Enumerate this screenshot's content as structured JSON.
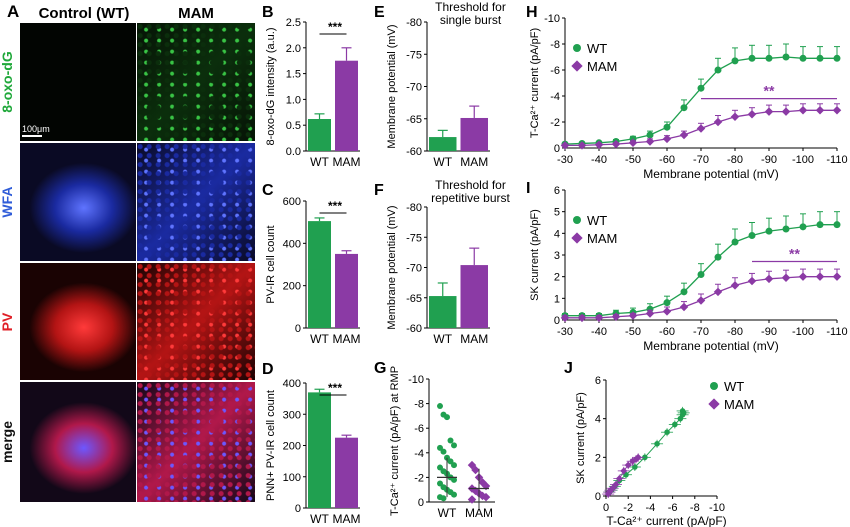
{
  "panel_A": {
    "letter": "A",
    "col_headers": [
      "Control (WT)",
      "MAM"
    ],
    "row_labels": [
      "8-oxo-dG",
      "WFA",
      "PV",
      "merge"
    ],
    "row_label_colors": [
      "#1fa83a",
      "#2f5cd8",
      "#e01f26",
      "#111111"
    ],
    "scale_bar": "100μm"
  },
  "colors": {
    "wt": "#20a050",
    "mam": "#8b3aa5"
  },
  "chart_data": [
    {
      "id": "B",
      "type": "bar",
      "categories": [
        "WT",
        "MAM"
      ],
      "values": [
        0.62,
        1.75
      ],
      "errors": [
        0.1,
        0.25
      ],
      "ylabel": "8-oxo-dG intensity (a.u.)",
      "ylim": [
        0,
        2.5
      ],
      "yticks": [
        "0.0",
        "0.5",
        "1.0",
        "1.5",
        "2.0",
        "2.5"
      ],
      "significance": "***"
    },
    {
      "id": "C",
      "type": "bar",
      "categories": [
        "WT",
        "MAM"
      ],
      "values": [
        505,
        350
      ],
      "errors": [
        15,
        15
      ],
      "ylabel": "PV-IR cell count",
      "ylim": [
        0,
        600
      ],
      "yticks": [
        "0",
        "200",
        "400",
        "600"
      ],
      "significance": "***"
    },
    {
      "id": "D",
      "type": "bar",
      "categories": [
        "WT",
        "MAM"
      ],
      "values": [
        370,
        225
      ],
      "errors": [
        10,
        8
      ],
      "ylabel": "PNN+ PV-IR cell count",
      "ylim": [
        0,
        400
      ],
      "yticks": [
        "0",
        "100",
        "200",
        "300",
        "400"
      ],
      "significance": "***"
    },
    {
      "id": "E",
      "type": "bar",
      "categories": [
        "WT",
        "MAM"
      ],
      "values": [
        -62.7,
        -66.4
      ],
      "errors": [
        1.3,
        2.3
      ],
      "title": "Threshold for\nsingle burst",
      "ylabel": "Membrane potential (mV)",
      "ylim": [
        -60,
        -85
      ],
      "yticks": [
        "-60",
        "-65",
        "-70",
        "-75",
        "-80"
      ]
    },
    {
      "id": "F",
      "type": "bar",
      "categories": [
        "WT",
        "MAM"
      ],
      "values": [
        -66.6,
        -73.0
      ],
      "errors": [
        2.7,
        3.5
      ],
      "title": "Threshold for\nrepetitive burst",
      "ylabel": "Membrane potential (mV)",
      "ylim": [
        -60,
        -85
      ],
      "yticks": [
        "-60",
        "-65",
        "-70",
        "-75",
        "-80"
      ]
    },
    {
      "id": "G",
      "type": "scatter",
      "categories": [
        "WT",
        "MAM"
      ],
      "ylabel": "T-Ca²⁺ current (pA/pF) at RMP",
      "ylim": [
        0,
        -10
      ],
      "yticks": [
        "0",
        "-2",
        "-4",
        "-6",
        "-8",
        "-10"
      ],
      "series": [
        {
          "name": "WT",
          "values": [
            -7.8,
            -7.1,
            -6.9,
            -5.0,
            -4.6,
            -4.4,
            -4.1,
            -3.6,
            -3.3,
            -3.0,
            -2.8,
            -2.5,
            -2.3,
            -2.0,
            -1.8,
            -1.5,
            -1.2,
            -1.0,
            -0.8,
            -0.6,
            -0.4,
            -0.3
          ],
          "mean": -2.0,
          "sd": 1.6
        },
        {
          "name": "MAM",
          "values": [
            -3.0,
            -2.6,
            -2.0,
            -1.6,
            -1.3,
            -1.1,
            -0.9,
            -0.7,
            -0.5,
            -0.4,
            -0.2
          ],
          "mean": -1.1,
          "sd": 1.6
        }
      ]
    },
    {
      "id": "H",
      "type": "line",
      "legend": "top-left",
      "xlabel": "Membrane potential (mV)",
      "ylabel": "T-Ca²⁺ current (pA/pF)",
      "xlim": [
        -30,
        -110
      ],
      "ylim": [
        0,
        -10
      ],
      "xticks": [
        "-30",
        "-40",
        "-50",
        "-60",
        "-70",
        "-80",
        "-90",
        "-100",
        "-110"
      ],
      "yticks": [
        "0",
        "-2",
        "-4",
        "-6",
        "-8",
        "-10"
      ],
      "x": [
        -30,
        -35,
        -40,
        -45,
        -50,
        -55,
        -60,
        -65,
        -70,
        -75,
        -80,
        -85,
        -90,
        -95,
        -100,
        -105,
        -110
      ],
      "series": [
        {
          "name": "WT",
          "values": [
            -0.3,
            -0.35,
            -0.4,
            -0.5,
            -0.7,
            -1.0,
            -1.6,
            -3.1,
            -4.6,
            -6.0,
            -6.7,
            -6.9,
            -6.9,
            -7.0,
            -6.9,
            -6.9,
            -6.9
          ],
          "errors": [
            0.1,
            0.1,
            0.1,
            0.15,
            0.2,
            0.3,
            0.4,
            0.6,
            0.7,
            0.9,
            1.0,
            1.0,
            1.0,
            1.0,
            0.9,
            0.9,
            0.9
          ]
        },
        {
          "name": "MAM",
          "values": [
            -0.2,
            -0.2,
            -0.25,
            -0.3,
            -0.4,
            -0.5,
            -0.7,
            -1.0,
            -1.5,
            -2.0,
            -2.4,
            -2.6,
            -2.8,
            -2.8,
            -2.9,
            -2.9,
            -2.9
          ],
          "errors": [
            0.1,
            0.1,
            0.1,
            0.1,
            0.15,
            0.2,
            0.25,
            0.3,
            0.4,
            0.5,
            0.5,
            0.5,
            0.5,
            0.5,
            0.5,
            0.5,
            0.5
          ]
        }
      ],
      "significance": {
        "label": "**",
        "x_from": -70,
        "x_to": -110,
        "y": -3.8
      }
    },
    {
      "id": "I",
      "type": "line",
      "legend": "top-left",
      "xlabel": "Membrane potential (mV)",
      "ylabel": "SK current (pA/pF)",
      "xlim": [
        -30,
        -110
      ],
      "ylim": [
        0,
        6
      ],
      "xticks": [
        "-30",
        "-40",
        "-50",
        "-60",
        "-70",
        "-80",
        "-90",
        "-100",
        "-110"
      ],
      "yticks": [
        "0",
        "1",
        "2",
        "3",
        "4",
        "5",
        "6"
      ],
      "x": [
        -30,
        -35,
        -40,
        -45,
        -50,
        -55,
        -60,
        -65,
        -70,
        -75,
        -80,
        -85,
        -90,
        -95,
        -100,
        -105,
        -110
      ],
      "series": [
        {
          "name": "WT",
          "values": [
            0.2,
            0.2,
            0.2,
            0.3,
            0.35,
            0.5,
            0.8,
            1.3,
            2.1,
            2.9,
            3.6,
            3.9,
            4.1,
            4.2,
            4.3,
            4.4,
            4.4
          ],
          "errors": [
            0.1,
            0.1,
            0.1,
            0.15,
            0.2,
            0.25,
            0.3,
            0.4,
            0.5,
            0.6,
            0.6,
            0.6,
            0.6,
            0.6,
            0.6,
            0.6,
            0.6
          ]
        },
        {
          "name": "MAM",
          "values": [
            0.1,
            0.1,
            0.1,
            0.15,
            0.2,
            0.3,
            0.4,
            0.6,
            0.9,
            1.3,
            1.6,
            1.8,
            1.9,
            1.95,
            2.0,
            2.0,
            2.0
          ],
          "errors": [
            0.1,
            0.1,
            0.1,
            0.1,
            0.1,
            0.15,
            0.2,
            0.25,
            0.3,
            0.35,
            0.35,
            0.35,
            0.35,
            0.35,
            0.35,
            0.35,
            0.35
          ]
        }
      ],
      "significance": {
        "label": "**",
        "x_from": -85,
        "x_to": -110,
        "y": 2.7
      }
    },
    {
      "id": "J",
      "type": "scatter",
      "legend": "top-right",
      "xlabel": "T-Ca²⁺ current (pA/pF)",
      "ylabel": "SK current (pA/pF)",
      "xlim": [
        0,
        -10
      ],
      "ylim": [
        0,
        6
      ],
      "xticks": [
        "0",
        "-2",
        "-4",
        "-6",
        "-8",
        "-10"
      ],
      "yticks": [
        "0",
        "2",
        "4",
        "6"
      ],
      "series": [
        {
          "name": "WT",
          "x": [
            -0.3,
            -0.5,
            -0.8,
            -1.2,
            -1.8,
            -2.6,
            -3.5,
            -4.6,
            -5.5,
            -6.2,
            -6.7,
            -6.9,
            -7.0,
            -6.9
          ],
          "y": [
            0.2,
            0.3,
            0.5,
            0.8,
            1.1,
            1.5,
            2.0,
            2.7,
            3.3,
            3.7,
            4.0,
            4.2,
            4.3,
            4.4
          ]
        },
        {
          "name": "MAM",
          "x": [
            -0.2,
            -0.3,
            -0.4,
            -0.6,
            -0.9,
            -1.2,
            -1.6,
            -2.0,
            -2.4,
            -2.7,
            -2.9
          ],
          "y": [
            0.1,
            0.2,
            0.3,
            0.4,
            0.6,
            0.9,
            1.3,
            1.6,
            1.8,
            1.9,
            2.0
          ]
        }
      ]
    }
  ]
}
